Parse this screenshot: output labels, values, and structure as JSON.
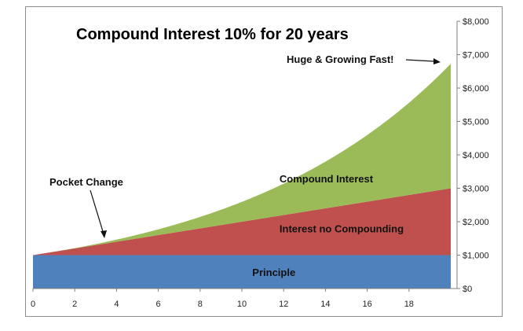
{
  "chart_data": {
    "type": "area",
    "title": "Compound Interest 10% for 20 years",
    "x": [
      0,
      1,
      2,
      3,
      4,
      5,
      6,
      7,
      8,
      9,
      10,
      11,
      12,
      13,
      14,
      15,
      16,
      17,
      18,
      19,
      20
    ],
    "xlim": [
      0,
      20
    ],
    "x_ticks": [
      0,
      2,
      4,
      6,
      8,
      10,
      12,
      14,
      16,
      18
    ],
    "ylim": [
      0,
      8000
    ],
    "y_ticks": [
      0,
      1000,
      2000,
      3000,
      4000,
      5000,
      6000,
      7000,
      8000
    ],
    "y_tick_labels": [
      "$0",
      "$1,000",
      "$2,000",
      "$3,000",
      "$4,000",
      "$5,000",
      "$6,000",
      "$7,000",
      "$8,000"
    ],
    "y_axis_side": "right",
    "stacked": true,
    "grid": false,
    "series": [
      {
        "name": "Principle",
        "color": "#4f81bd",
        "values": [
          1000,
          1000,
          1000,
          1000,
          1000,
          1000,
          1000,
          1000,
          1000,
          1000,
          1000,
          1000,
          1000,
          1000,
          1000,
          1000,
          1000,
          1000,
          1000,
          1000,
          1000
        ]
      },
      {
        "name": "Interest no Compounding",
        "color": "#c0504d",
        "values": [
          0,
          100,
          200,
          300,
          400,
          500,
          600,
          700,
          800,
          900,
          1000,
          1100,
          1200,
          1300,
          1400,
          1500,
          1600,
          1700,
          1800,
          1900,
          2000
        ]
      },
      {
        "name": "Compound Interest",
        "color": "#9bbb59",
        "values": [
          0,
          0,
          10,
          31,
          64,
          111,
          172,
          249,
          344,
          458,
          594,
          753,
          938,
          1152,
          1397,
          1677,
          1995,
          2355,
          2760,
          3216,
          3727
        ]
      }
    ],
    "annotations": [
      {
        "text": "Pocket Change"
      },
      {
        "text": "Huge & Growing Fast!"
      }
    ]
  }
}
